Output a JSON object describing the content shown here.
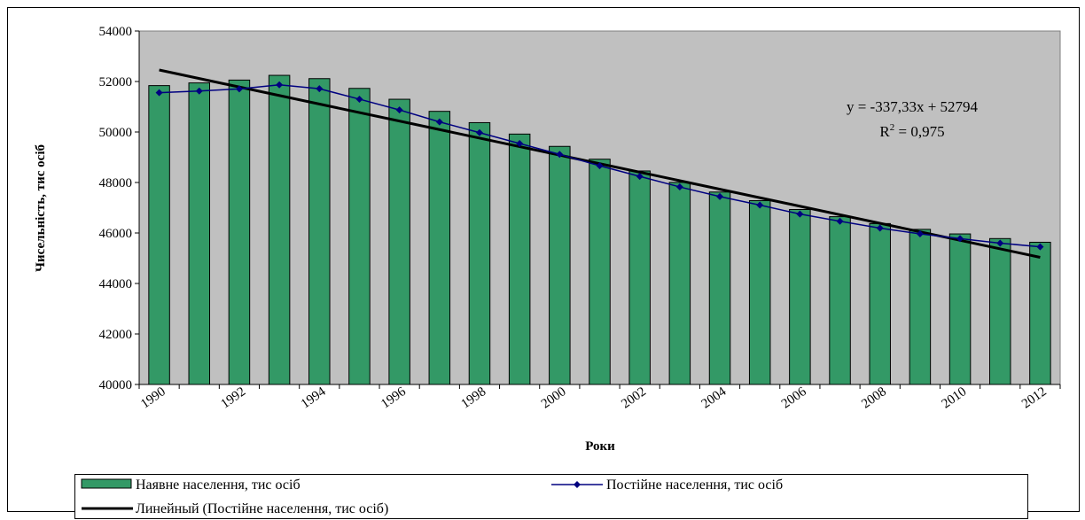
{
  "chart_data": {
    "type": "bar",
    "title": "",
    "xlabel": "Роки",
    "ylabel": "Чисельність, тис осіб",
    "ylim": [
      40000,
      54000
    ],
    "yticks": [
      40000,
      42000,
      44000,
      46000,
      48000,
      50000,
      52000,
      54000
    ],
    "x": [
      1990,
      1991,
      1992,
      1993,
      1994,
      1995,
      1996,
      1997,
      1998,
      1999,
      2000,
      2001,
      2002,
      2003,
      2004,
      2005,
      2006,
      2007,
      2008,
      2009,
      2010,
      2011,
      2012
    ],
    "xtick_labels": [
      "1990",
      "1992",
      "1994",
      "1996",
      "1998",
      "2000",
      "2002",
      "2004",
      "2006",
      "2008",
      "2010",
      "2012"
    ],
    "series": [
      {
        "name": "Наявне населення, тис осіб",
        "type": "bar",
        "color": "#339966",
        "values": [
          51838,
          51944,
          52057,
          52244,
          52114,
          51728,
          51297,
          50818,
          50370,
          49918,
          49430,
          48923,
          48457,
          48004,
          47622,
          47280,
          46930,
          46646,
          46373,
          46144,
          45963,
          45779,
          45633
        ]
      },
      {
        "name": "Постійне населення, тис осіб",
        "type": "line",
        "color": "#000080",
        "values": [
          51556,
          51623,
          51708,
          51870,
          51715,
          51300,
          50874,
          50400,
          49973,
          49544,
          49115,
          48663,
          48241,
          47823,
          47442,
          47105,
          46750,
          46466,
          46192,
          45963,
          45778,
          45598,
          45453
        ]
      },
      {
        "name": "Линейный (Постійне населення, тис осіб)",
        "type": "trendline",
        "color": "#000000",
        "slope": -337.33,
        "intercept": 52794
      }
    ],
    "annotations": {
      "equation": "y = -337,33x + 52794",
      "r2_prefix": "R",
      "r2_sup": "2",
      "r2_value": " = 0,975"
    },
    "legend_position": "bottom",
    "grid": false,
    "plot_background": "#c0c0c0"
  }
}
